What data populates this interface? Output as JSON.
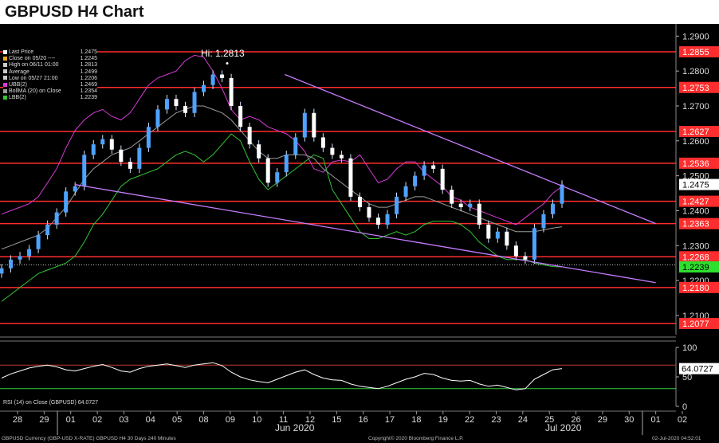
{
  "title": "GBPUSD H4 Chart",
  "hi_label": "Hi: 1.2813",
  "legend": [
    {
      "label": "Last Price",
      "value": "1.2475",
      "color": "#ffffff"
    },
    {
      "label": "Close on 05/20 ----",
      "value": "1.2245",
      "color": "#f5a623"
    },
    {
      "label": "High on 06/11 01:00",
      "value": "1.2813",
      "color": "#cccccc"
    },
    {
      "label": "Average",
      "value": "1.2499",
      "color": "#cccccc"
    },
    {
      "label": "Low on 05/27 21:00",
      "value": "1.2206",
      "color": "#cccccc"
    },
    {
      "label": "UBB(2)",
      "value": "1.2469",
      "color": "#d63bd6"
    },
    {
      "label": "BollMA (20)  on Close",
      "value": "1.2354",
      "color": "#9b9b9b"
    },
    {
      "label": "LBB(2)",
      "value": "1.2239",
      "color": "#35c535"
    }
  ],
  "rsi_legend": "RSI (14)  on Close (GBPUSD) 64.0727",
  "month_labels": {
    "jun": "Jun 2020",
    "jul": "Jul 2020"
  },
  "footer": {
    "left": "GBPUSD Currency (GBP-USD X-RATE) GBPUSD H4 30 Days 240 Minutes",
    "center": "Copyright© 2020 Bloomberg Finance L.P.",
    "right": "02-Jul-2020 04:52:01"
  },
  "colors": {
    "candle": "#4ea3ff",
    "resistance": "#ff2d2d",
    "trend": "#c77dff",
    "ubb": "#d63bd6",
    "lbb": "#35c535",
    "ma": "#9b9b9b"
  },
  "chart_data": {
    "type": "candlestick",
    "x_ticks": [
      "28",
      "29",
      "01",
      "02",
      "03",
      "04",
      "05",
      "08",
      "09",
      "10",
      "11",
      "12",
      "15",
      "16",
      "17",
      "18",
      "19",
      "22",
      "23",
      "24",
      "25",
      "26",
      "29",
      "30",
      "01",
      "02"
    ],
    "y_ticks": [
      "1.2900",
      "1.2800",
      "1.2700",
      "1.2600",
      "1.2500",
      "1.2400",
      "1.2300",
      "1.2200",
      "1.2100"
    ],
    "ylim": [
      1.2045,
      1.2935
    ],
    "levels": [
      {
        "value": 1.2855,
        "label": "1.2855"
      },
      {
        "value": 1.2753,
        "label": "1.2753"
      },
      {
        "value": 1.2627,
        "label": "1.2627"
      },
      {
        "value": 1.2536,
        "label": "1.2536"
      },
      {
        "value": 1.2427,
        "label": "1.2427"
      },
      {
        "value": 1.2363,
        "label": "1.2363"
      },
      {
        "value": 1.2268,
        "label": "1.2268"
      },
      {
        "value": 1.218,
        "label": "1.2180"
      },
      {
        "value": 1.2077,
        "label": "1.2077"
      }
    ],
    "last_price": {
      "value": 1.2475,
      "label": "1.2475"
    },
    "lbb_label": {
      "value": 1.2239,
      "label": "1.2239"
    },
    "low_close_line": 1.2245,
    "trendlines": [
      {
        "x1": 10.05,
        "y1": 1.279,
        "x2": 24.0,
        "y2": 1.2363
      },
      {
        "x1": 2.15,
        "y1": 1.2475,
        "x2": 24.0,
        "y2": 1.2194
      }
    ],
    "close": [
      1.2235,
      1.226,
      1.227,
      1.229,
      1.233,
      1.236,
      1.2395,
      1.2455,
      1.247,
      1.256,
      1.259,
      1.2605,
      1.2575,
      1.254,
      1.252,
      1.258,
      1.264,
      1.269,
      1.272,
      1.27,
      1.268,
      1.274,
      1.276,
      1.279,
      1.278,
      1.27,
      1.264,
      1.259,
      1.255,
      1.248,
      1.251,
      1.256,
      1.261,
      1.268,
      1.261,
      1.258,
      1.256,
      1.255,
      1.244,
      1.241,
      1.238,
      1.236,
      1.239,
      1.244,
      1.247,
      1.25,
      1.253,
      1.252,
      1.246,
      1.242,
      1.241,
      1.242,
      1.236,
      1.232,
      1.234,
      1.23,
      1.227,
      1.226,
      1.235,
      1.239,
      1.242,
      1.2475
    ],
    "ubb": [
      1.239,
      1.24,
      1.241,
      1.242,
      1.244,
      1.248,
      1.252,
      1.258,
      1.263,
      1.266,
      1.268,
      1.269,
      1.267,
      1.266,
      1.268,
      1.272,
      1.276,
      1.278,
      1.279,
      1.28,
      1.283,
      1.2845,
      1.284,
      1.28,
      1.275,
      1.269,
      1.266,
      1.267,
      1.266,
      1.264,
      1.263,
      1.262,
      1.26,
      1.257,
      1.252,
      1.251,
      1.254,
      1.2545,
      1.254,
      1.256,
      1.252,
      1.248,
      1.249,
      1.252,
      1.254,
      1.254,
      1.251,
      1.249,
      1.247,
      1.244,
      1.243,
      1.241,
      1.24,
      1.239,
      1.238,
      1.237,
      1.236,
      1.238,
      1.24,
      1.242,
      1.245,
      1.2469
    ],
    "ma": [
      1.229,
      1.23,
      1.231,
      1.232,
      1.233,
      1.235,
      1.238,
      1.241,
      1.245,
      1.249,
      1.252,
      1.254,
      1.256,
      1.257,
      1.258,
      1.26,
      1.262,
      1.264,
      1.266,
      1.268,
      1.269,
      1.27,
      1.27,
      1.269,
      1.268,
      1.266,
      1.263,
      1.26,
      1.257,
      1.255,
      1.255,
      1.256,
      1.256,
      1.256,
      1.255,
      1.252,
      1.25,
      1.248,
      1.246,
      1.244,
      1.242,
      1.241,
      1.241,
      1.242,
      1.243,
      1.244,
      1.244,
      1.243,
      1.242,
      1.241,
      1.24,
      1.239,
      1.238,
      1.237,
      1.236,
      1.235,
      1.234,
      1.234,
      1.234,
      1.2345,
      1.235,
      1.2354
    ],
    "lbb": [
      1.214,
      1.216,
      1.218,
      1.22,
      1.222,
      1.223,
      1.224,
      1.225,
      1.227,
      1.231,
      1.236,
      1.239,
      1.243,
      1.247,
      1.249,
      1.25,
      1.251,
      1.252,
      1.254,
      1.256,
      1.257,
      1.256,
      1.254,
      1.256,
      1.259,
      1.262,
      1.26,
      1.254,
      1.249,
      1.246,
      1.248,
      1.25,
      1.252,
      1.254,
      1.256,
      1.255,
      1.246,
      1.242,
      1.238,
      1.234,
      1.232,
      1.232,
      1.233,
      1.234,
      1.233,
      1.234,
      1.236,
      1.237,
      1.237,
      1.237,
      1.236,
      1.234,
      1.231,
      1.229,
      1.227,
      1.226,
      1.226,
      1.226,
      1.225,
      1.2245,
      1.224,
      1.2239
    ],
    "rsi": {
      "label": "64.0727",
      "y_ticks": [
        "100",
        "50",
        "0"
      ],
      "ylim": [
        0,
        100
      ],
      "overbought": 70,
      "oversold": 30,
      "values": [
        48,
        55,
        60,
        65,
        68,
        70,
        67,
        62,
        60,
        64,
        68,
        71,
        66,
        60,
        58,
        64,
        68,
        70,
        72,
        69,
        66,
        70,
        72,
        74,
        69,
        58,
        50,
        45,
        42,
        40,
        46,
        52,
        58,
        62,
        54,
        48,
        45,
        44,
        38,
        34,
        32,
        30,
        34,
        40,
        46,
        50,
        56,
        54,
        48,
        44,
        43,
        44,
        38,
        34,
        36,
        32,
        28,
        30,
        46,
        54,
        62,
        64
      ]
    }
  }
}
